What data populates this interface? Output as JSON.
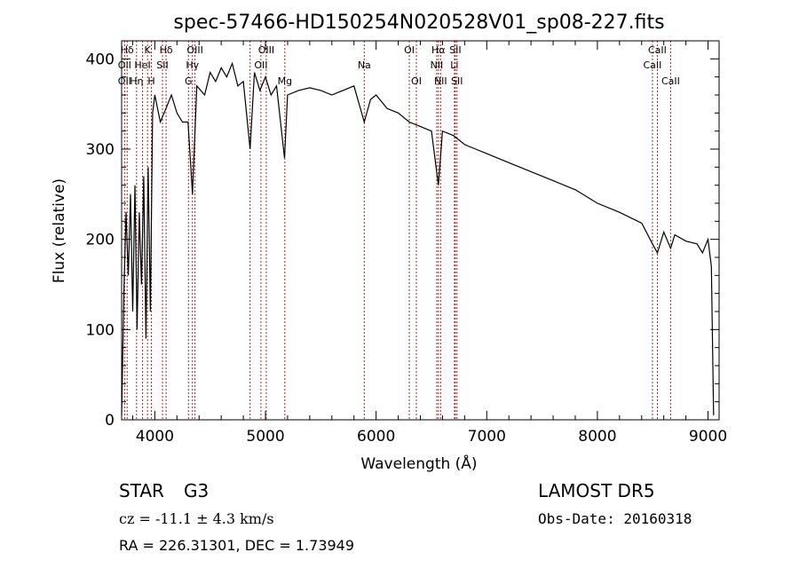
{
  "chart_data": {
    "type": "line",
    "title": "spec-57466-HD150254N020528V01_sp08-227.fits",
    "xlabel": "Wavelength (Å)",
    "ylabel": "Flux (relative)",
    "xlim": [
      3700,
      9100
    ],
    "ylim": [
      0,
      420
    ],
    "x_ticks": [
      4000,
      5000,
      6000,
      7000,
      8000,
      9000
    ],
    "y_ticks": [
      0,
      100,
      200,
      300,
      400
    ],
    "grid": false,
    "line_color": "#000000",
    "marker_color": "#b22222",
    "series": [
      {
        "x": [
          3700,
          3720,
          3740,
          3760,
          3780,
          3800,
          3820,
          3840,
          3860,
          3880,
          3900,
          3920,
          3940,
          3960,
          3980,
          4000,
          4050,
          4100,
          4150,
          4200,
          4250,
          4300,
          4340,
          4380,
          4450,
          4500,
          4550,
          4600,
          4650,
          4700,
          4750,
          4800,
          4861,
          4900,
          4950,
          5000,
          5050,
          5100,
          5172,
          5200,
          5300,
          5400,
          5500,
          5600,
          5700,
          5800,
          5893,
          5950,
          6000,
          6100,
          6200,
          6300,
          6400,
          6500,
          6563,
          6600,
          6700,
          6800,
          6900,
          7000,
          7200,
          7400,
          7600,
          7800,
          8000,
          8200,
          8400,
          8498,
          8542,
          8600,
          8662,
          8700,
          8800,
          8900,
          8950,
          9000,
          9030,
          9050
        ],
        "y": [
          5,
          140,
          230,
          160,
          250,
          120,
          260,
          100,
          230,
          150,
          270,
          90,
          280,
          120,
          340,
          360,
          330,
          345,
          360,
          340,
          330,
          330,
          250,
          370,
          360,
          385,
          375,
          390,
          380,
          395,
          370,
          375,
          300,
          385,
          365,
          380,
          360,
          370,
          290,
          360,
          365,
          368,
          365,
          360,
          365,
          370,
          330,
          355,
          360,
          345,
          340,
          330,
          325,
          320,
          260,
          320,
          315,
          305,
          300,
          295,
          285,
          275,
          265,
          255,
          240,
          230,
          218,
          195,
          185,
          208,
          190,
          205,
          198,
          195,
          185,
          200,
          170,
          5
        ]
      }
    ],
    "spectral_lines": [
      {
        "label": "Hδ",
        "x": 3750,
        "row": 1
      },
      {
        "label": "K",
        "x": 3934,
        "row": 1
      },
      {
        "label": "Hδ",
        "x": 4102,
        "row": 1
      },
      {
        "label": "OIII",
        "x": 4363,
        "row": 1
      },
      {
        "label": "OIII",
        "x": 5007,
        "row": 1
      },
      {
        "label": "OI",
        "x": 6300,
        "row": 1
      },
      {
        "label": "Hα",
        "x": 6563,
        "row": 1
      },
      {
        "label": "SII",
        "x": 6716,
        "row": 1
      },
      {
        "label": "CaII",
        "x": 8542,
        "row": 1
      },
      {
        "label": "OII",
        "x": 3727,
        "row": 2
      },
      {
        "label": "HeI",
        "x": 3889,
        "row": 2
      },
      {
        "label": "SII",
        "x": 4069,
        "row": 2
      },
      {
        "label": "Hγ",
        "x": 4340,
        "row": 2
      },
      {
        "label": "OII",
        "x": 4959,
        "row": 2
      },
      {
        "label": "Na",
        "x": 5893,
        "row": 2
      },
      {
        "label": "NII",
        "x": 6548,
        "row": 2
      },
      {
        "label": "Li",
        "x": 6708,
        "row": 2
      },
      {
        "label": "CaII",
        "x": 8498,
        "row": 2
      },
      {
        "label": "OII",
        "x": 3727,
        "row": 3
      },
      {
        "label": "Hη",
        "x": 3835,
        "row": 3
      },
      {
        "label": "H",
        "x": 3969,
        "row": 3
      },
      {
        "label": "G",
        "x": 4304,
        "row": 3
      },
      {
        "label": "Mg",
        "x": 5175,
        "row": 3
      },
      {
        "label": "OI",
        "x": 6364,
        "row": 3
      },
      {
        "label": "NII",
        "x": 6583,
        "row": 3
      },
      {
        "label": "SII",
        "x": 6731,
        "row": 3
      },
      {
        "label": "CaII",
        "x": 8662,
        "row": 3
      }
    ],
    "marker_lines": [
      3727,
      3750,
      3835,
      3889,
      3934,
      3969,
      4069,
      4102,
      4304,
      4340,
      4363,
      4861,
      4959,
      5007,
      5175,
      5893,
      6300,
      6364,
      6548,
      6563,
      6583,
      6708,
      6716,
      6731,
      8498,
      8542,
      8662
    ]
  },
  "info": {
    "object_class": "STAR",
    "subclass": "G3",
    "survey": "LAMOST DR5",
    "cz": "cz = -11.1 ± 4.3 km/s",
    "obs_date": "Obs-Date: 20160318",
    "coords": "RA = 226.31301, DEC =   1.73949"
  }
}
